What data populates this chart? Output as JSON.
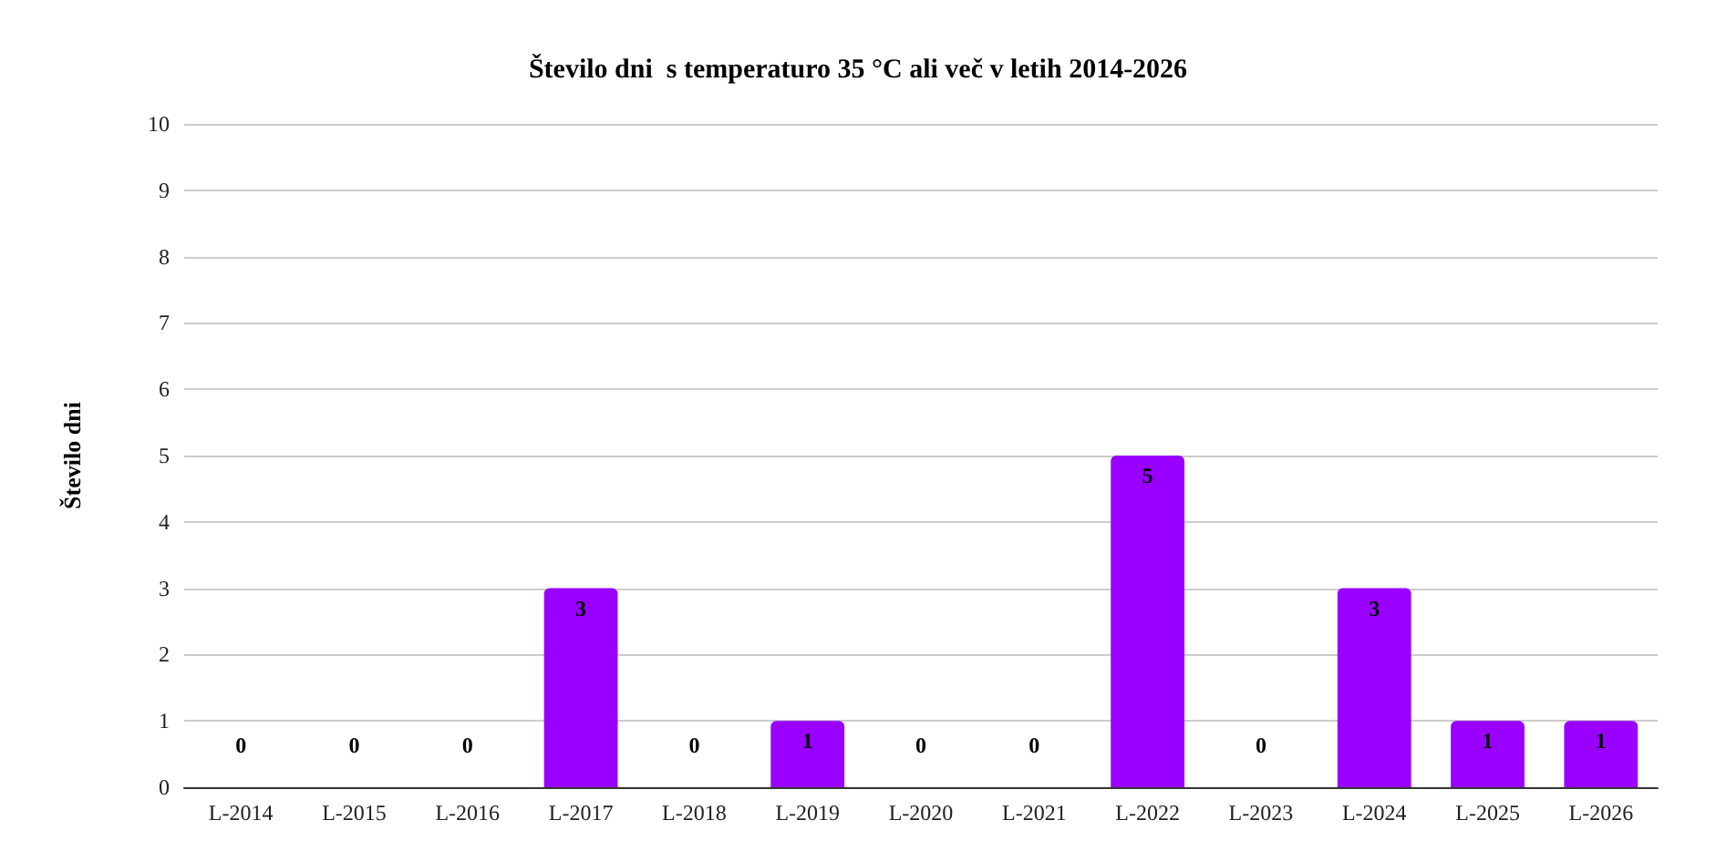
{
  "chart_data": {
    "type": "bar",
    "title": "Število dni  s temperaturo 35 °C ali več v letih 2014-2026",
    "ylabel": "Število dni",
    "categories": [
      "L-2014",
      "L-2015",
      "L-2016",
      "L-2017",
      "L-2018",
      "L-2019",
      "L-2020",
      "L-2021",
      "L-2022",
      "L-2023",
      "L-2024",
      "L-2025",
      "L-2026"
    ],
    "values": [
      0,
      0,
      0,
      3,
      0,
      1,
      0,
      0,
      5,
      0,
      3,
      1,
      1
    ],
    "color": "#9900ff",
    "ylim": [
      0,
      10
    ],
    "yticks": [
      0,
      1,
      2,
      3,
      4,
      5,
      6,
      7,
      8,
      9,
      10
    ],
    "grid": "y",
    "data_labels": true
  }
}
